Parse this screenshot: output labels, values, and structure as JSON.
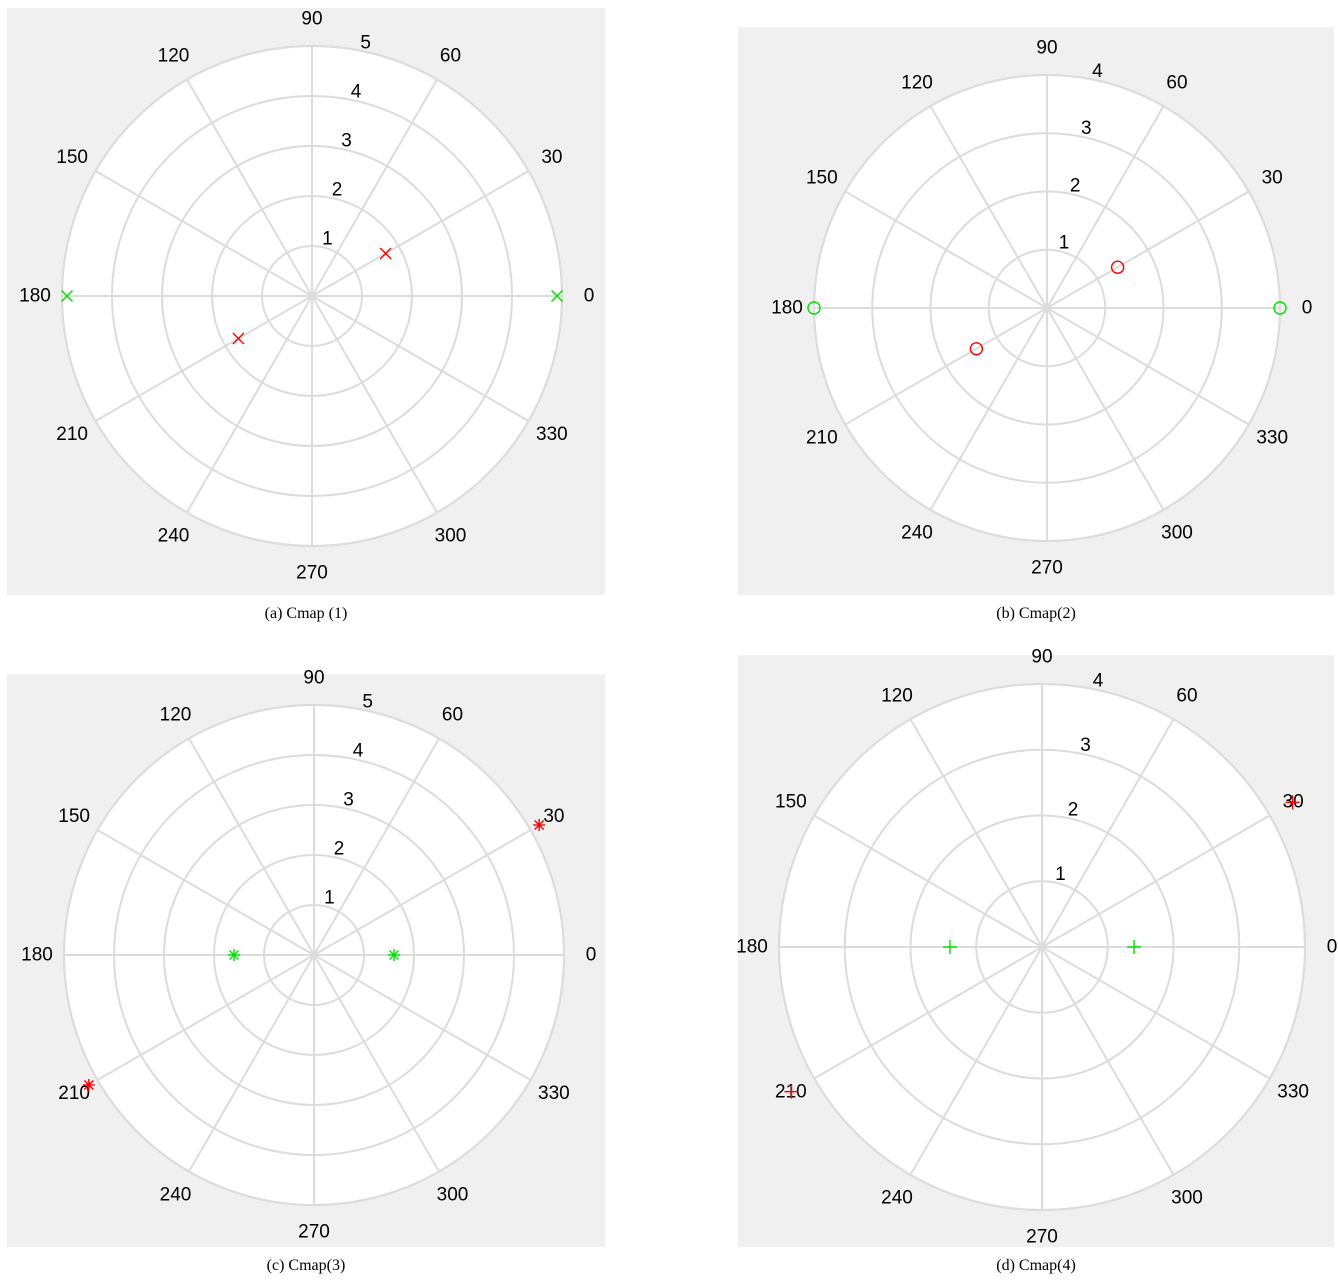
{
  "figures": [
    {
      "caption": "(a) Cmap (1)",
      "chart_data": {
        "type": "scatter",
        "coordinate_system": "polar",
        "angle_unit": "degrees",
        "theta_ticks": [
          "0",
          "30",
          "60",
          "90",
          "120",
          "150",
          "180",
          "210",
          "240",
          "270",
          "300",
          "330"
        ],
        "r_ticks": [
          "1",
          "2",
          "3",
          "4",
          "5"
        ],
        "rlim": [
          0,
          5
        ],
        "grid": true,
        "series": [
          {
            "color": "#ff0000",
            "marker": "x",
            "points": [
              {
                "theta": 30,
                "r": 1.7
              },
              {
                "theta": 210,
                "r": 1.7
              }
            ]
          },
          {
            "color": "#00e000",
            "marker": "x",
            "points": [
              {
                "theta": 0,
                "r": 4.9
              },
              {
                "theta": 180,
                "r": 4.9
              }
            ]
          }
        ]
      }
    },
    {
      "caption": "(b) Cmap(2)",
      "chart_data": {
        "type": "scatter",
        "coordinate_system": "polar",
        "angle_unit": "degrees",
        "theta_ticks": [
          "0",
          "30",
          "60",
          "90",
          "120",
          "150",
          "180",
          "210",
          "240",
          "270",
          "300",
          "330"
        ],
        "r_ticks": [
          "1",
          "2",
          "3",
          "4"
        ],
        "rlim": [
          0,
          4
        ],
        "grid": true,
        "series": [
          {
            "color": "#ff0000",
            "marker": "o",
            "points": [
              {
                "theta": 30,
                "r": 1.4
              },
              {
                "theta": 210,
                "r": 1.4
              }
            ]
          },
          {
            "color": "#00e000",
            "marker": "o",
            "points": [
              {
                "theta": 0,
                "r": 4.0
              },
              {
                "theta": 180,
                "r": 4.0
              }
            ]
          }
        ]
      }
    },
    {
      "caption": "(c) Cmap(3)",
      "chart_data": {
        "type": "scatter",
        "coordinate_system": "polar",
        "angle_unit": "degrees",
        "theta_ticks": [
          "0",
          "30",
          "60",
          "90",
          "120",
          "150",
          "180",
          "210",
          "240",
          "270",
          "300",
          "330"
        ],
        "r_ticks": [
          "1",
          "2",
          "3",
          "4",
          "5"
        ],
        "rlim": [
          0,
          5
        ],
        "grid": true,
        "series": [
          {
            "color": "#ff0000",
            "marker": "*",
            "points": [
              {
                "theta": 30,
                "r": 5.2
              },
              {
                "theta": 210,
                "r": 5.2
              }
            ]
          },
          {
            "color": "#00e000",
            "marker": "*",
            "points": [
              {
                "theta": 0,
                "r": 1.6
              },
              {
                "theta": 180,
                "r": 1.6
              }
            ]
          }
        ]
      }
    },
    {
      "caption": "(d) Cmap(4)",
      "chart_data": {
        "type": "scatter",
        "coordinate_system": "polar",
        "angle_unit": "degrees",
        "theta_ticks": [
          "0",
          "30",
          "60",
          "90",
          "120",
          "150",
          "180",
          "210",
          "240",
          "270",
          "300",
          "330"
        ],
        "r_ticks": [
          "1",
          "2",
          "3",
          "4"
        ],
        "rlim": [
          0,
          4
        ],
        "grid": true,
        "series": [
          {
            "color": "#ff0000",
            "marker": "+",
            "points": [
              {
                "theta": 30,
                "r": 4.4
              },
              {
                "theta": 210,
                "r": 4.4
              }
            ]
          },
          {
            "color": "#00e000",
            "marker": "+",
            "points": [
              {
                "theta": 0,
                "r": 1.4
              },
              {
                "theta": 180,
                "r": 1.4
              }
            ]
          }
        ]
      }
    }
  ]
}
